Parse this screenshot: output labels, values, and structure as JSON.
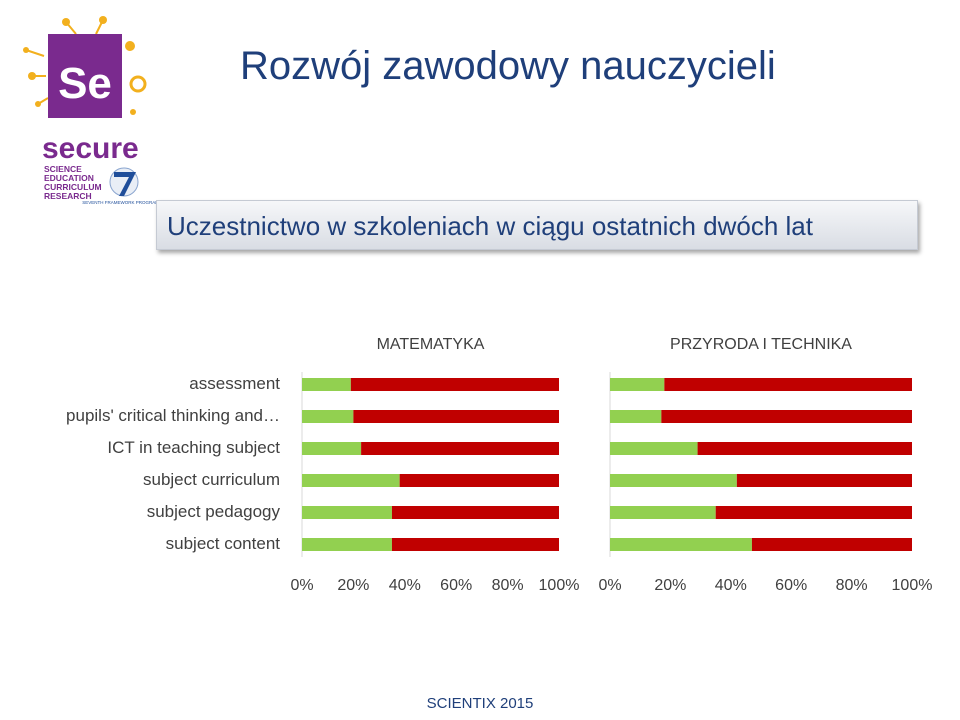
{
  "title": "Rozwój zawodowy nauczycieli",
  "subtitle": "Uczestnictwo w szkoleniach w ciągu ostatnich dwóch lat",
  "footer": "SCIENTIX 2015",
  "logo": {
    "mark": "Se",
    "name": "secure",
    "acronym_lines": [
      "SCIENCE",
      "EDUCATION",
      "CURRICULUM",
      "RESEARCH"
    ],
    "fp7_text": "SEVENTH FRAMEWORK PROGRAMME"
  },
  "colors": {
    "green": "#92d050",
    "red": "#c00000",
    "title": "#1f3f7a",
    "logo_purple": "#7a2a8e",
    "logo_gold": "#f2b01e"
  },
  "chart_data": [
    {
      "type": "bar",
      "orientation": "horizontal",
      "stacked": "percent",
      "title": "MATEMATYKA",
      "categories": [
        "assessment",
        "pupils' critical thinking and…",
        "ICT in teaching subject",
        "subject curriculum",
        "subject pedagogy",
        "subject content"
      ],
      "series": [
        {
          "color": "#92d050",
          "values": [
            19,
            20,
            23,
            38,
            35,
            35
          ]
        },
        {
          "color": "#c00000",
          "values": [
            81,
            80,
            77,
            62,
            65,
            65
          ]
        }
      ],
      "xticks": [
        "0%",
        "20%",
        "40%",
        "60%",
        "80%",
        "100%"
      ],
      "xlim": [
        0,
        100
      ],
      "grid": false
    },
    {
      "type": "bar",
      "orientation": "horizontal",
      "stacked": "percent",
      "title": "PRZYRODA I TECHNIKA",
      "categories": [
        "assessment",
        "pupils' critical thinking and…",
        "ICT in teaching subject",
        "subject curriculum",
        "subject pedagogy",
        "subject content"
      ],
      "series": [
        {
          "color": "#92d050",
          "values": [
            18,
            17,
            29,
            42,
            35,
            47
          ]
        },
        {
          "color": "#c00000",
          "values": [
            82,
            83,
            71,
            58,
            65,
            53
          ]
        }
      ],
      "xticks": [
        "0%",
        "20%",
        "40%",
        "60%",
        "80%",
        "100%"
      ],
      "xlim": [
        0,
        100
      ],
      "grid": false
    }
  ]
}
